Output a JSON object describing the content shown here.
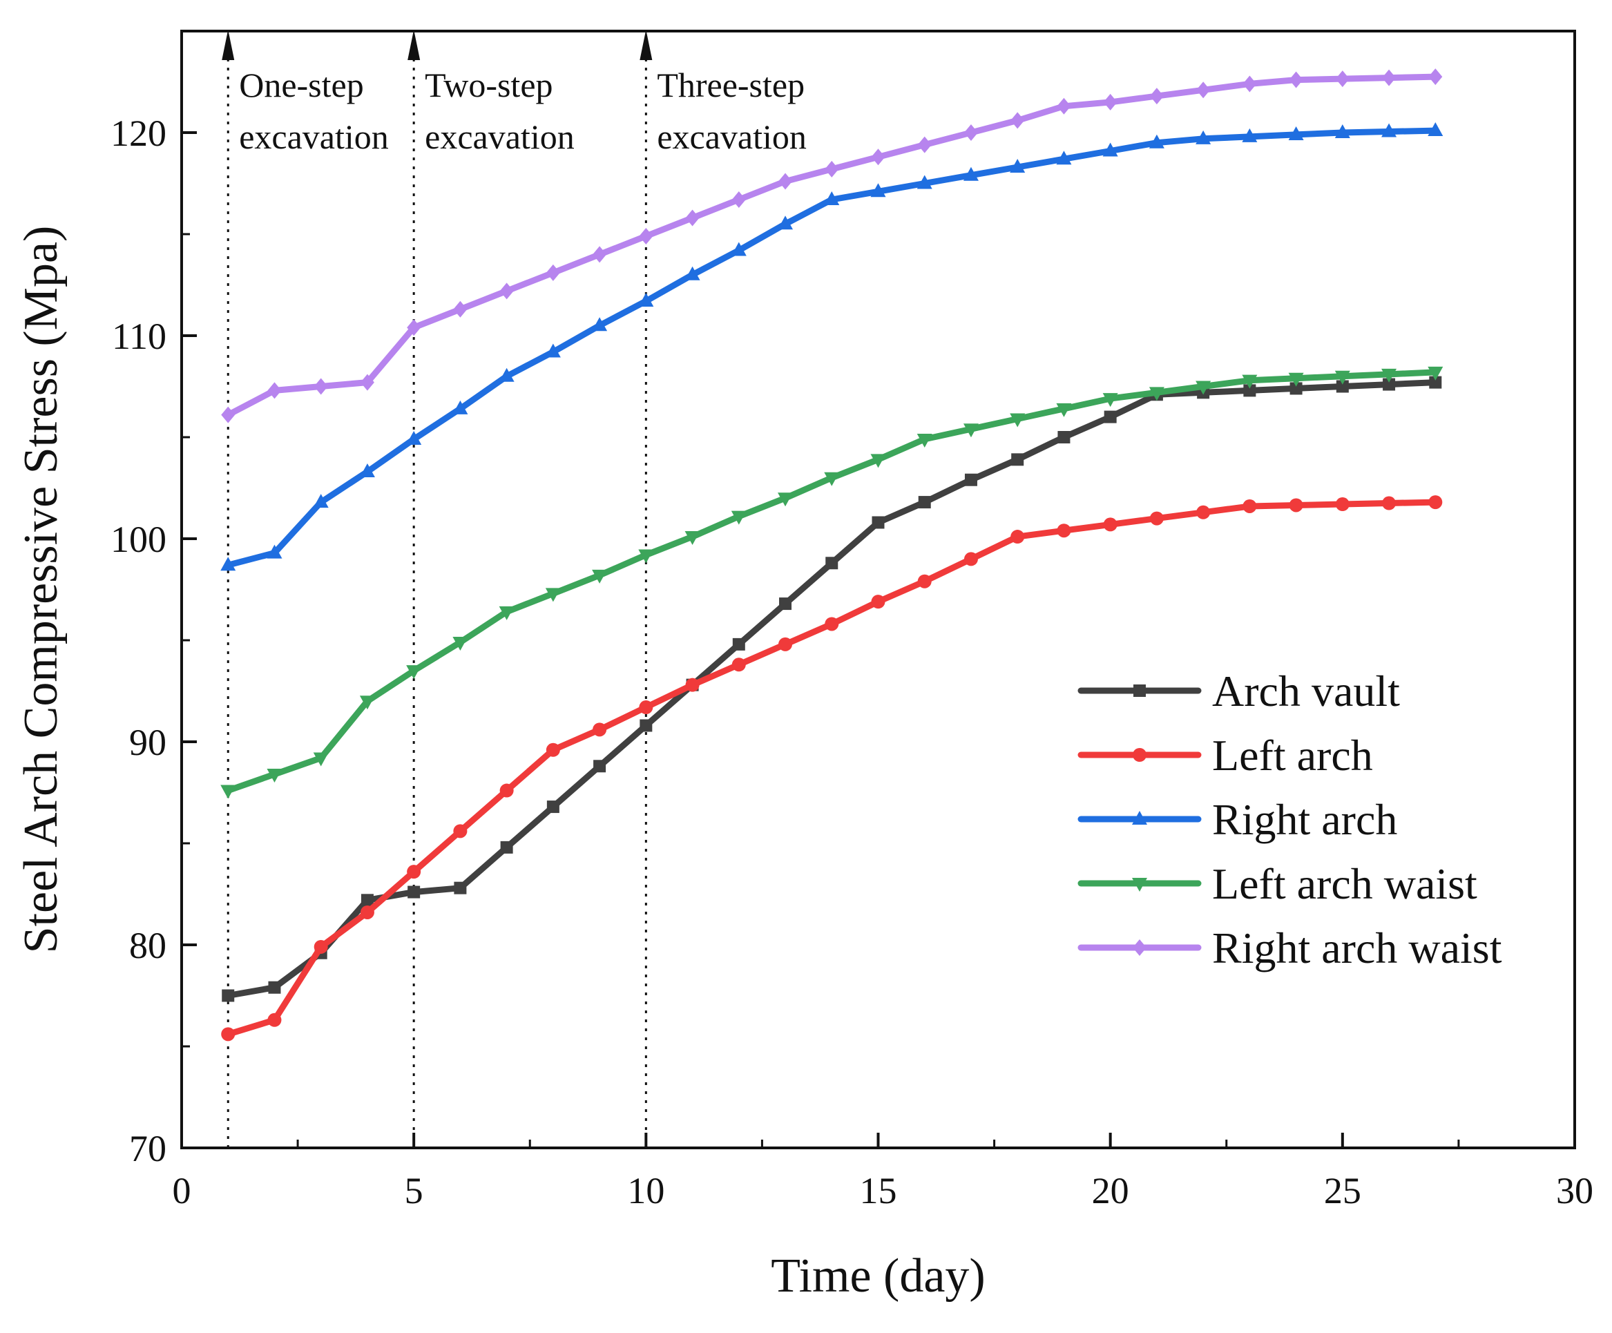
{
  "chart_data": {
    "type": "line",
    "title": "",
    "xlabel": "Time (day)",
    "ylabel": "Steel Arch Compressive Stress (Mpa)",
    "xlim": [
      0,
      30
    ],
    "ylim": [
      70,
      125
    ],
    "xticks": [
      0,
      5,
      10,
      15,
      20,
      25,
      30
    ],
    "yticks": [
      70,
      80,
      90,
      100,
      110,
      120
    ],
    "x_minor_step": 2.5,
    "y_minor_step": 5,
    "grid": false,
    "legend_position": "bottom-right",
    "x": [
      1,
      2,
      3,
      4,
      5,
      6,
      7,
      8,
      9,
      10,
      11,
      12,
      13,
      14,
      15,
      16,
      17,
      18,
      19,
      20,
      21,
      22,
      23,
      24,
      25,
      26,
      27
    ],
    "series": [
      {
        "name": "Arch vault",
        "color": "#404040",
        "marker": "square",
        "values": [
          77.5,
          77.9,
          79.6,
          82.2,
          82.6,
          82.8,
          84.8,
          86.8,
          88.8,
          90.8,
          92.8,
          94.8,
          96.8,
          98.8,
          100.8,
          101.8,
          102.9,
          103.9,
          105.0,
          106.0,
          107.1,
          107.2,
          107.3,
          107.4,
          107.5,
          107.6,
          107.7
        ]
      },
      {
        "name": "Left arch",
        "color": "#f03a3a",
        "marker": "circle",
        "values": [
          75.6,
          76.3,
          79.9,
          81.6,
          83.6,
          85.6,
          87.6,
          89.6,
          90.6,
          91.7,
          92.8,
          93.8,
          94.8,
          95.8,
          96.9,
          97.9,
          99.0,
          100.1,
          100.4,
          100.7,
          101.0,
          101.3,
          101.6,
          101.65,
          101.7,
          101.75,
          101.8
        ]
      },
      {
        "name": "Right arch",
        "color": "#1f6ee0",
        "marker": "triangle-up",
        "values": [
          98.7,
          99.3,
          101.8,
          103.3,
          104.9,
          106.4,
          108.0,
          109.2,
          110.5,
          111.7,
          113.0,
          114.2,
          115.5,
          116.7,
          117.1,
          117.5,
          117.9,
          118.3,
          118.7,
          119.1,
          119.5,
          119.7,
          119.8,
          119.9,
          120.0,
          120.05,
          120.1
        ]
      },
      {
        "name": "Left arch waist",
        "color": "#3ca55a",
        "marker": "triangle-down",
        "values": [
          87.6,
          88.4,
          89.2,
          92.0,
          93.5,
          94.9,
          96.4,
          97.3,
          98.2,
          99.2,
          100.1,
          101.1,
          102.0,
          103.0,
          103.9,
          104.9,
          105.4,
          105.9,
          106.4,
          106.9,
          107.2,
          107.5,
          107.8,
          107.9,
          108.0,
          108.1,
          108.2
        ]
      },
      {
        "name": "Right arch waist",
        "color": "#b784ee",
        "marker": "diamond",
        "values": [
          106.1,
          107.3,
          107.5,
          107.7,
          110.4,
          111.3,
          112.2,
          113.1,
          114.0,
          114.9,
          115.8,
          116.7,
          117.6,
          118.2,
          118.8,
          119.4,
          120.0,
          120.6,
          121.3,
          121.5,
          121.8,
          122.1,
          122.4,
          122.6,
          122.65,
          122.7,
          122.75
        ]
      }
    ],
    "annotations": [
      {
        "x": 1,
        "lines": [
          "One-step",
          "excavation"
        ]
      },
      {
        "x": 5,
        "lines": [
          "Two-step",
          "excavation"
        ]
      },
      {
        "x": 10,
        "lines": [
          "Three-step",
          "excavation"
        ]
      }
    ]
  }
}
